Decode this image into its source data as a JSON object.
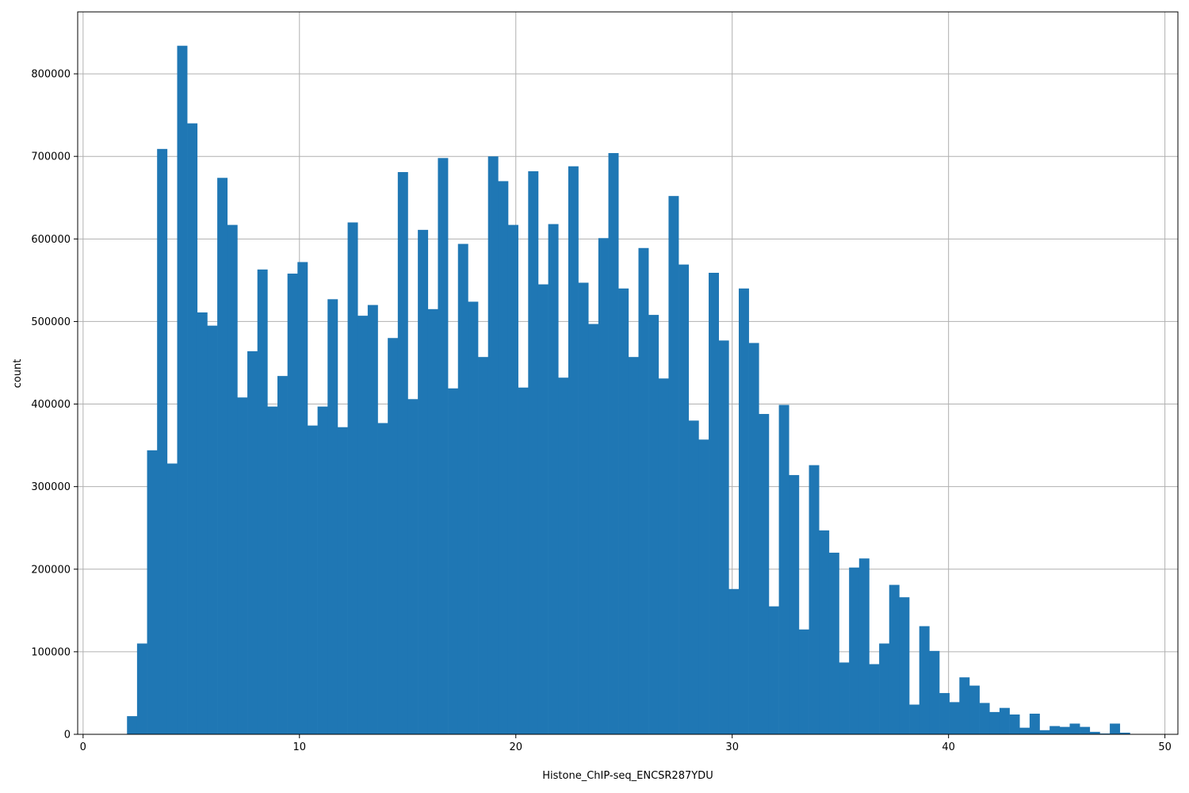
{
  "chart_data": {
    "type": "bar",
    "histogram": true,
    "xlabel": "Histone_ChIP-seq_ENCSR287YDU",
    "ylabel": "count",
    "xlim": [
      -0.25,
      50.6
    ],
    "ylim": [
      0,
      875000
    ],
    "grid": true,
    "bar_color": "#1f77b4",
    "bin_start": 2.03,
    "bin_width": 0.4635,
    "values": [
      22000,
      110000,
      344000,
      709000,
      328000,
      834000,
      740000,
      511000,
      495000,
      674000,
      617000,
      408000,
      464000,
      563000,
      397000,
      434000,
      558000,
      572000,
      374000,
      397000,
      527000,
      372000,
      620000,
      507000,
      520000,
      377000,
      480000,
      681000,
      406000,
      611000,
      515000,
      698000,
      419000,
      594000,
      524000,
      457000,
      700000,
      670000,
      617000,
      420000,
      682000,
      545000,
      618000,
      432000,
      688000,
      547000,
      497000,
      601000,
      704000,
      540000,
      457000,
      589000,
      508000,
      431000,
      652000,
      569000,
      380000,
      357000,
      559000,
      477000,
      176000,
      540000,
      474000,
      388000,
      155000,
      399000,
      314000,
      127000,
      326000,
      247000,
      220000,
      87000,
      202000,
      213000,
      85000,
      110000,
      181000,
      166000,
      36000,
      131000,
      101000,
      50000,
      39000,
      69000,
      59000,
      38000,
      27000,
      32000,
      24000,
      8000,
      25000,
      5000,
      10000,
      9000,
      13000,
      9000,
      3000,
      1000,
      13000,
      2000
    ],
    "x_ticks": [
      0,
      10,
      20,
      30,
      40,
      50
    ],
    "x_tick_labels": [
      "0",
      "10",
      "20",
      "30",
      "40",
      "50"
    ],
    "y_ticks": [
      0,
      100000,
      200000,
      300000,
      400000,
      500000,
      600000,
      700000,
      800000
    ],
    "y_tick_labels": [
      "0",
      "100000",
      "200000",
      "300000",
      "400000",
      "500000",
      "600000",
      "700000",
      "800000"
    ]
  }
}
